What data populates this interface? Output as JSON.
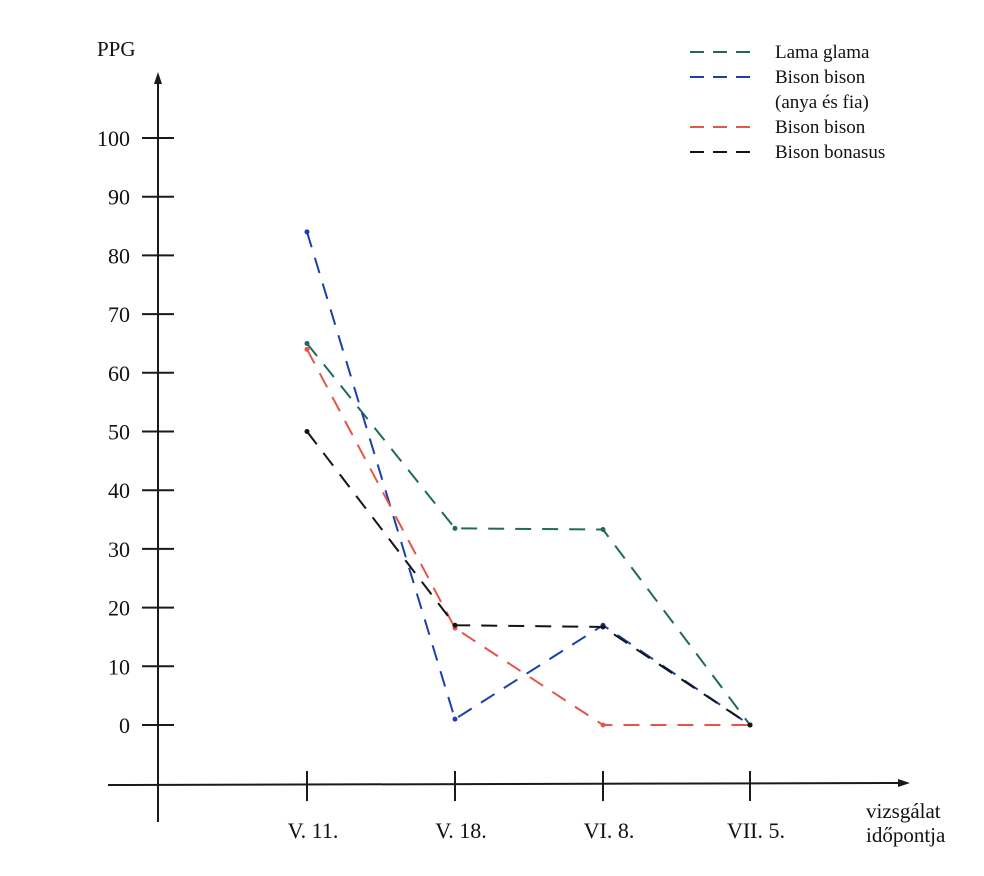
{
  "chart_data": {
    "type": "line",
    "ylabel": "PPG",
    "xlabel_lines": [
      "vizsgálat",
      "időpontja"
    ],
    "categories": [
      "V. 11.",
      "V. 18.",
      "VI. 8.",
      "VII. 5."
    ],
    "yticks": [
      0,
      10,
      20,
      30,
      40,
      50,
      60,
      70,
      80,
      90,
      100
    ],
    "ylim": [
      -10,
      110
    ],
    "grid": false,
    "legend_position": "top-right",
    "series": [
      {
        "name": "Lama glama",
        "legend_lines": [
          "Lama glama"
        ],
        "color": "#1f6b5a",
        "values": [
          65,
          33.5,
          33.3,
          0
        ]
      },
      {
        "name": "Bison bison (anya és fia)",
        "legend_lines": [
          "Bison bison",
          "(anya és fia)"
        ],
        "color": "#1c3fb0",
        "values": [
          84,
          1,
          17,
          0
        ]
      },
      {
        "name": "Bison bison",
        "legend_lines": [
          "Bison bison"
        ],
        "color": "#e2574c",
        "values": [
          64,
          16.5,
          0,
          0
        ]
      },
      {
        "name": "Bison bonasus",
        "legend_lines": [
          "Bison bonasus"
        ],
        "color": "#141414",
        "values": [
          50,
          17,
          16.7,
          0
        ]
      }
    ]
  }
}
